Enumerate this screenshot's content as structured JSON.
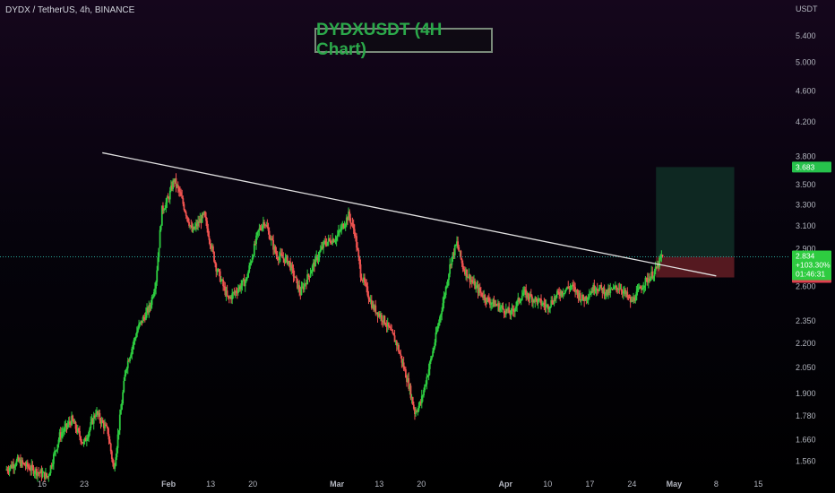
{
  "header": {
    "symbol_info": "DYDX / TetherUS, 4h, BINANCE",
    "chart_title": "DYDXUSDT (4H Chart)",
    "currency": "USDT"
  },
  "colors": {
    "background": "#000000",
    "up_candle": "#26a69a",
    "up_candle_bright": "#2ecc40",
    "down_candle": "#ef5350",
    "trendline": "#e0e0e0",
    "target_zone": "#0f2a24",
    "stop_zone": "#5a1a22",
    "last_price_line": "#26a69a",
    "axis_text": "#b2b5be",
    "target_label_bg": "#27c24c",
    "stop_label_bg": "#e04050",
    "current_label_bg": "#2ecc40",
    "mid_label_bg": "#808080"
  },
  "chart_data": {
    "type": "candlestick",
    "title": "DYDXUSDT (4H Chart)",
    "timeframe": "4h",
    "exchange": "BINANCE",
    "pair": "DYDX / TetherUS",
    "y_axis": {
      "scale": "log",
      "unit": "USDT",
      "ylim": [
        1.49,
        6.0
      ],
      "tick_labels": [
        "5.400",
        "5.000",
        "4.600",
        "4.200",
        "3.800",
        "3.500",
        "3.300",
        "3.100",
        "2.900",
        "2.600",
        "2.350",
        "2.200",
        "2.050",
        "1.900",
        "1.780",
        "1.660",
        "1.560"
      ],
      "tick_values": [
        5.4,
        5.0,
        4.6,
        4.2,
        3.8,
        3.5,
        3.3,
        3.1,
        2.9,
        2.6,
        2.35,
        2.2,
        2.05,
        1.9,
        1.78,
        1.66,
        1.56
      ]
    },
    "x_axis": {
      "tick_labels": [
        "16",
        "23",
        "Feb",
        "13",
        "20",
        "Mar",
        "13",
        "20",
        "Apr",
        "10",
        "17",
        "24",
        "May",
        "8",
        "15"
      ],
      "tick_dates": [
        "2023-01-16",
        "2023-01-23",
        "2023-02-06",
        "2023-02-13",
        "2023-02-20",
        "2023-03-06",
        "2023-03-13",
        "2023-03-20",
        "2023-04-03",
        "2023-04-10",
        "2023-04-17",
        "2023-04-24",
        "2023-05-01",
        "2023-05-08",
        "2023-05-15"
      ],
      "range": [
        "2023-01-09",
        "2023-05-20"
      ]
    },
    "price_path": [
      [
        "2023-01-10",
        1.52
      ],
      [
        "2023-01-12",
        1.56
      ],
      [
        "2023-01-14",
        1.53
      ],
      [
        "2023-01-17",
        1.49
      ],
      [
        "2023-01-19",
        1.68
      ],
      [
        "2023-01-21",
        1.76
      ],
      [
        "2023-01-23",
        1.64
      ],
      [
        "2023-01-25",
        1.8
      ],
      [
        "2023-01-27",
        1.7
      ],
      [
        "2023-01-28",
        1.52
      ],
      [
        "2023-01-30",
        2.05
      ],
      [
        "2023-02-01",
        2.3
      ],
      [
        "2023-02-03",
        2.45
      ],
      [
        "2023-02-04",
        2.65
      ],
      [
        "2023-02-05",
        3.25
      ],
      [
        "2023-02-06",
        3.35
      ],
      [
        "2023-02-07",
        3.55
      ],
      [
        "2023-02-08",
        3.4
      ],
      [
        "2023-02-10",
        3.05
      ],
      [
        "2023-02-12",
        3.2
      ],
      [
        "2023-02-14",
        2.75
      ],
      [
        "2023-02-16",
        2.5
      ],
      [
        "2023-02-17",
        2.55
      ],
      [
        "2023-02-19",
        2.65
      ],
      [
        "2023-02-21",
        3.05
      ],
      [
        "2023-02-22",
        3.15
      ],
      [
        "2023-02-24",
        2.85
      ],
      [
        "2023-02-26",
        2.8
      ],
      [
        "2023-02-28",
        2.55
      ],
      [
        "2023-03-02",
        2.75
      ],
      [
        "2023-03-04",
        2.95
      ],
      [
        "2023-03-06",
        3.0
      ],
      [
        "2023-03-08",
        3.2
      ],
      [
        "2023-03-09",
        3.05
      ],
      [
        "2023-03-10",
        2.7
      ],
      [
        "2023-03-12",
        2.45
      ],
      [
        "2023-03-14",
        2.35
      ],
      [
        "2023-03-16",
        2.2
      ],
      [
        "2023-03-18",
        1.95
      ],
      [
        "2023-03-19",
        1.8
      ],
      [
        "2023-03-20",
        1.85
      ],
      [
        "2023-03-22",
        2.15
      ],
      [
        "2023-03-24",
        2.55
      ],
      [
        "2023-03-25",
        2.8
      ],
      [
        "2023-03-26",
        2.95
      ],
      [
        "2023-03-27",
        2.75
      ],
      [
        "2023-03-29",
        2.6
      ],
      [
        "2023-03-31",
        2.5
      ],
      [
        "2023-04-02",
        2.45
      ],
      [
        "2023-04-04",
        2.4
      ],
      [
        "2023-04-06",
        2.55
      ],
      [
        "2023-04-08",
        2.5
      ],
      [
        "2023-04-10",
        2.45
      ],
      [
        "2023-04-12",
        2.55
      ],
      [
        "2023-04-14",
        2.6
      ],
      [
        "2023-04-16",
        2.5
      ],
      [
        "2023-04-18",
        2.6
      ],
      [
        "2023-04-20",
        2.55
      ],
      [
        "2023-04-22",
        2.6
      ],
      [
        "2023-04-24",
        2.48
      ],
      [
        "2023-04-26",
        2.62
      ],
      [
        "2023-04-28",
        2.72
      ],
      [
        "2023-04-29",
        2.83
      ]
    ],
    "trendline": {
      "start": [
        "2023-01-26",
        3.84
      ],
      "end": [
        "2023-05-08",
        2.68
      ],
      "color": "#e0e0e0"
    },
    "long_position": {
      "entry": 2.834,
      "target": 3.683,
      "stop": 2.668,
      "x_start": "2023-04-28",
      "x_end": "2023-05-11"
    },
    "current_price": 2.834,
    "mid_price": 2.815,
    "grid": false
  },
  "price_labels": {
    "current": {
      "price": "2.834",
      "change": "+103.30%",
      "countdown": "01:46:31"
    },
    "mid": "2.815",
    "target": "3.683",
    "stop": "2.668"
  }
}
